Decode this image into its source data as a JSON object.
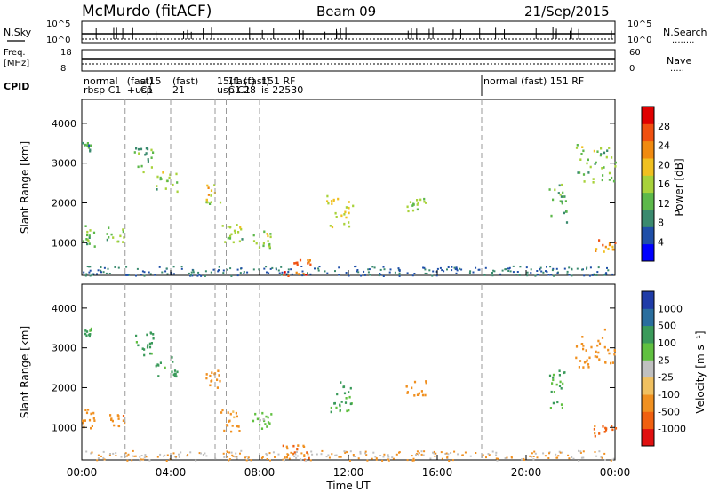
{
  "header": {
    "title": "McMurdo (fitACF)",
    "beam": "Beam 09",
    "date": "21/Sep/2015"
  },
  "strips": {
    "nsky_label": "N.Sky",
    "nsky_ticks": [
      "10^5",
      "10^0"
    ],
    "nsearch_label": "N.Search",
    "nsearch_ticks": [
      "10^5",
      "10^0"
    ],
    "freq_label_1": "Freq.",
    "freq_label_2": "[MHz]",
    "freq_ticks": [
      "18",
      "8"
    ],
    "nave_label": "Nave",
    "nave_ticks": [
      "60",
      "0"
    ],
    "cpid_label": "CPID"
  },
  "cpid_segments": [
    {
      "start_hour": 0.0,
      "line1": "normal",
      "line2": "rbsp C1"
    },
    {
      "start_hour": 1.95,
      "line1": "(fast)",
      "line2": "+usp"
    },
    {
      "start_hour": 2.55,
      "line1": "al15",
      "line2": "C1"
    },
    {
      "start_hour": 4.0,
      "line1": "(fast)",
      "line2": "21"
    },
    {
      "start_hour": 6.0,
      "line1": "15(fast)",
      "line2": "usp C1"
    },
    {
      "start_hour": 6.5,
      "line1": "11",
      "line2": "C1"
    },
    {
      "start_hour": 7.2,
      "line1": "(fast)",
      "line2": "28"
    },
    {
      "start_hour": 8.0,
      "line1": "151 RF",
      "line2": "is 22530"
    },
    {
      "start_hour": 18.0,
      "line1": "normal (fast) 151 RF",
      "line2": ""
    }
  ],
  "time_axis": {
    "label": "Time UT",
    "ticks": [
      "00:00",
      "04:00",
      "08:00",
      "12:00",
      "16:00",
      "20:00",
      "00:00"
    ]
  },
  "power_panel": {
    "ylabel": "Slant Range [km]",
    "yticks": [
      "1000",
      "2000",
      "3000",
      "4000"
    ],
    "colorbar_label": "Power [dB]",
    "colorbar_ticks": [
      "4",
      "8",
      "12",
      "16",
      "20",
      "24",
      "28"
    ],
    "colors": [
      "#0000ff",
      "#1f4fa8",
      "#3a8a6e",
      "#5cb84a",
      "#a8d23a",
      "#f0c020",
      "#f08a10",
      "#f05010",
      "#e00000"
    ]
  },
  "velocity_panel": {
    "ylabel": "Slant Range [km]",
    "yticks": [
      "1000",
      "2000",
      "3000",
      "4000"
    ],
    "colorbar_label": "Velocity [m s⁻¹]",
    "colorbar_ticks": [
      "1000",
      "500",
      "100",
      "25",
      "-25",
      "-100",
      "-500",
      "-1000"
    ],
    "colors": [
      "#1f3ca8",
      "#2a6e9e",
      "#3a9a5a",
      "#60c040",
      "#c0c0c0",
      "#f0c060",
      "#f09020",
      "#f06010",
      "#e01010"
    ]
  },
  "chart_data": {
    "type": "heatmap",
    "title": "McMurdo (fitACF)",
    "xlabel": "Time UT",
    "ylabel": "Slant Range [km]",
    "x_range_hours": [
      0,
      24
    ],
    "y_range_km": [
      180,
      4600
    ],
    "grid": false,
    "dashed_cpid_lines_hours": [
      1.95,
      4.0,
      6.0,
      6.5,
      8.0,
      18.0
    ],
    "echo_regions": [
      {
        "t0": 0.0,
        "t1": 0.4,
        "r0": 3300,
        "r1": 3550,
        "power_db": 8,
        "velocity": 100
      },
      {
        "t0": 0.0,
        "t1": 0.6,
        "r0": 900,
        "r1": 1500,
        "power_db": 10,
        "velocity": -300
      },
      {
        "t0": 1.1,
        "t1": 1.9,
        "r0": 1000,
        "r1": 1400,
        "power_db": 12,
        "velocity": -400
      },
      {
        "t0": 2.3,
        "t1": 3.2,
        "r0": 2800,
        "r1": 3450,
        "power_db": 10,
        "velocity": 200
      },
      {
        "t0": 3.3,
        "t1": 4.3,
        "r0": 2300,
        "r1": 2800,
        "power_db": 12,
        "velocity": 150
      },
      {
        "t0": 5.5,
        "t1": 6.2,
        "r0": 2000,
        "r1": 2500,
        "power_db": 16,
        "velocity": -300
      },
      {
        "t0": 6.2,
        "t1": 7.2,
        "r0": 900,
        "r1": 1500,
        "power_db": 12,
        "velocity": -200
      },
      {
        "t0": 7.6,
        "t1": 8.5,
        "r0": 900,
        "r1": 1400,
        "power_db": 14,
        "velocity": 50
      },
      {
        "t0": 9.0,
        "t1": 10.3,
        "r0": 180,
        "r1": 600,
        "power_db": 24,
        "velocity": -400
      },
      {
        "t0": 11.0,
        "t1": 12.2,
        "r0": 1400,
        "r1": 2200,
        "power_db": 16,
        "velocity": 150
      },
      {
        "t0": 14.5,
        "t1": 15.5,
        "r0": 1800,
        "r1": 2200,
        "power_db": 14,
        "velocity": -200
      },
      {
        "t0": 21.0,
        "t1": 21.8,
        "r0": 1500,
        "r1": 2500,
        "power_db": 10,
        "velocity": 100
      },
      {
        "t0": 22.2,
        "t1": 24.0,
        "r0": 2500,
        "r1": 3500,
        "power_db": 12,
        "velocity": -300
      },
      {
        "t0": 23.0,
        "t1": 24.0,
        "r0": 800,
        "r1": 1100,
        "power_db": 20,
        "velocity": -600
      }
    ]
  }
}
